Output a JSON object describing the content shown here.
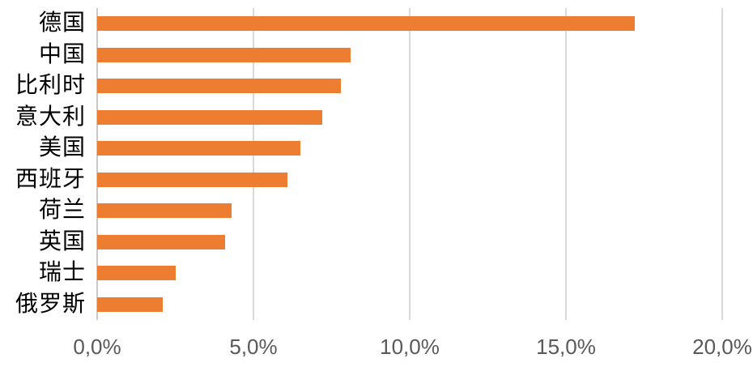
{
  "chart_data": {
    "type": "bar",
    "orientation": "horizontal",
    "title": "",
    "legend": "none",
    "grid": "vertical",
    "categories": [
      "德国",
      "中国",
      "比利时",
      "意大利",
      "美国",
      "西班牙",
      "荷兰",
      "英国",
      "瑞士",
      "俄罗斯"
    ],
    "values": [
      17.2,
      8.1,
      7.8,
      7.2,
      6.5,
      6.1,
      4.3,
      4.1,
      2.5,
      2.1
    ],
    "value_unit": "%",
    "xlim": [
      0,
      20
    ],
    "x_tick_values": [
      0,
      5,
      10,
      15,
      20
    ],
    "x_tick_labels": [
      "0,0%",
      "5,0%",
      "10,0%",
      "15,0%",
      "20,0%"
    ],
    "colors": {
      "bar": "#ED7D31",
      "gridline": "#D9D9D9",
      "axis_line": "#C9C9C9",
      "tick_label": "#595959",
      "category_label": "#000000",
      "background": "#FFFFFF"
    }
  }
}
